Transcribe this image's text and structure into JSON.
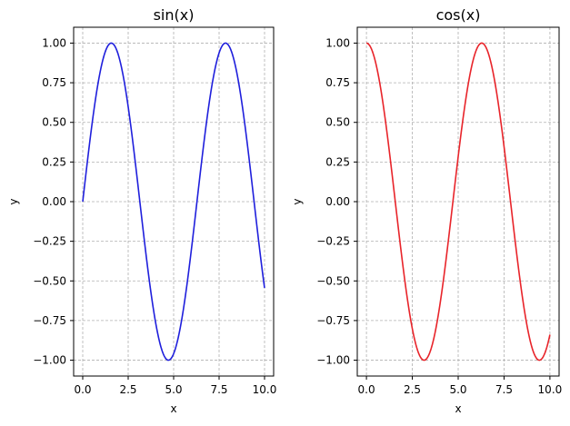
{
  "chart_data": [
    {
      "type": "line",
      "title": "sin(x)",
      "xlabel": "x",
      "ylabel": "y",
      "xlim": [
        -0.5,
        10.5
      ],
      "ylim": [
        -1.1,
        1.1
      ],
      "xticks": [
        0.0,
        2.5,
        5.0,
        7.5,
        10.0
      ],
      "xtick_labels": [
        "0.0",
        "2.5",
        "5.0",
        "7.5",
        "10.0"
      ],
      "yticks": [
        -1.0,
        -0.75,
        -0.5,
        -0.25,
        0.0,
        0.25,
        0.5,
        0.75,
        1.0
      ],
      "ytick_labels": [
        "−1.00",
        "−0.75",
        "−0.50",
        "−0.25",
        "0.00",
        "0.25",
        "0.50",
        "0.75",
        "1.00"
      ],
      "grid": true,
      "series": [
        {
          "function": "sin",
          "color": "#1f1fdc",
          "x": [
            0.0,
            0.5,
            1.0,
            1.5708,
            2.0,
            2.5,
            3.0,
            3.5,
            4.0,
            4.5,
            4.7124,
            5.0,
            5.5,
            6.0,
            6.5,
            7.0,
            7.5,
            7.854,
            8.5,
            9.0,
            9.5,
            10.0
          ],
          "y": [
            0.0,
            0.479,
            0.841,
            1.0,
            0.909,
            0.598,
            0.141,
            -0.351,
            -0.757,
            -0.978,
            -1.0,
            -0.959,
            -0.706,
            -0.279,
            0.215,
            0.657,
            0.938,
            1.0,
            0.798,
            0.412,
            -0.075,
            -0.544
          ]
        }
      ]
    },
    {
      "type": "line",
      "title": "cos(x)",
      "xlabel": "x",
      "ylabel": "y",
      "xlim": [
        -0.5,
        10.5
      ],
      "ylim": [
        -1.1,
        1.1
      ],
      "xticks": [
        0.0,
        2.5,
        5.0,
        7.5,
        10.0
      ],
      "xtick_labels": [
        "0.0",
        "2.5",
        "5.0",
        "7.5",
        "10.0"
      ],
      "yticks": [
        -1.0,
        -0.75,
        -0.5,
        -0.25,
        0.0,
        0.25,
        0.5,
        0.75,
        1.0
      ],
      "ytick_labels": [
        "−1.00",
        "−0.75",
        "−0.50",
        "−0.25",
        "0.00",
        "0.25",
        "0.50",
        "0.75",
        "1.00"
      ],
      "grid": true,
      "series": [
        {
          "function": "cos",
          "color": "#e8242a",
          "x": [
            0.0,
            0.5,
            1.0,
            1.5,
            2.0,
            2.5,
            3.1416,
            3.5,
            4.0,
            4.5,
            5.0,
            5.5,
            6.2832,
            6.5,
            7.0,
            7.5,
            8.0,
            8.5,
            9.0,
            9.4248,
            10.0
          ],
          "y": [
            1.0,
            0.878,
            0.54,
            0.071,
            -0.416,
            -0.801,
            -1.0,
            -0.936,
            -0.654,
            -0.211,
            0.284,
            0.709,
            1.0,
            0.977,
            0.754,
            0.347,
            -0.146,
            -0.602,
            -0.911,
            -1.0,
            -0.839
          ]
        }
      ]
    }
  ]
}
